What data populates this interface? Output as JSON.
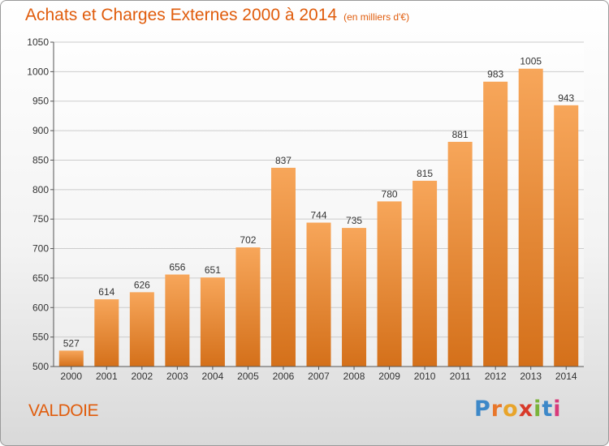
{
  "header": {
    "title": "Achats et Charges Externes 2000 à 2014",
    "subtitle": "(en milliers d'€)"
  },
  "footer": {
    "place": "VALDOIE",
    "brand": {
      "letters": [
        "P",
        "r",
        "o",
        "x",
        "i",
        "t",
        "i"
      ],
      "colors": [
        "#3d88c8",
        "#e8762a",
        "#e8a42a",
        "#d83a2a",
        "#7ab33a",
        "#3d88c8",
        "#d83a7a"
      ]
    }
  },
  "chart_data": {
    "type": "bar",
    "title": "Achats et Charges Externes 2000 à 2014",
    "subtitle": "(en milliers d'€)",
    "categories": [
      "2000",
      "2001",
      "2002",
      "2003",
      "2004",
      "2005",
      "2006",
      "2007",
      "2008",
      "2009",
      "2010",
      "2011",
      "2012",
      "2013",
      "2014"
    ],
    "values": [
      527,
      614,
      626,
      656,
      651,
      702,
      837,
      744,
      735,
      780,
      815,
      881,
      983,
      1005,
      943
    ],
    "ylim": [
      500,
      1050
    ],
    "yticks": [
      500,
      550,
      600,
      650,
      700,
      750,
      800,
      850,
      900,
      950,
      1000,
      1050
    ],
    "grid": true,
    "colors": {
      "bar_top": "#f7a65a",
      "bar_bottom": "#d4701a",
      "grid": "#cccccc",
      "axis_text": "#333333"
    }
  }
}
